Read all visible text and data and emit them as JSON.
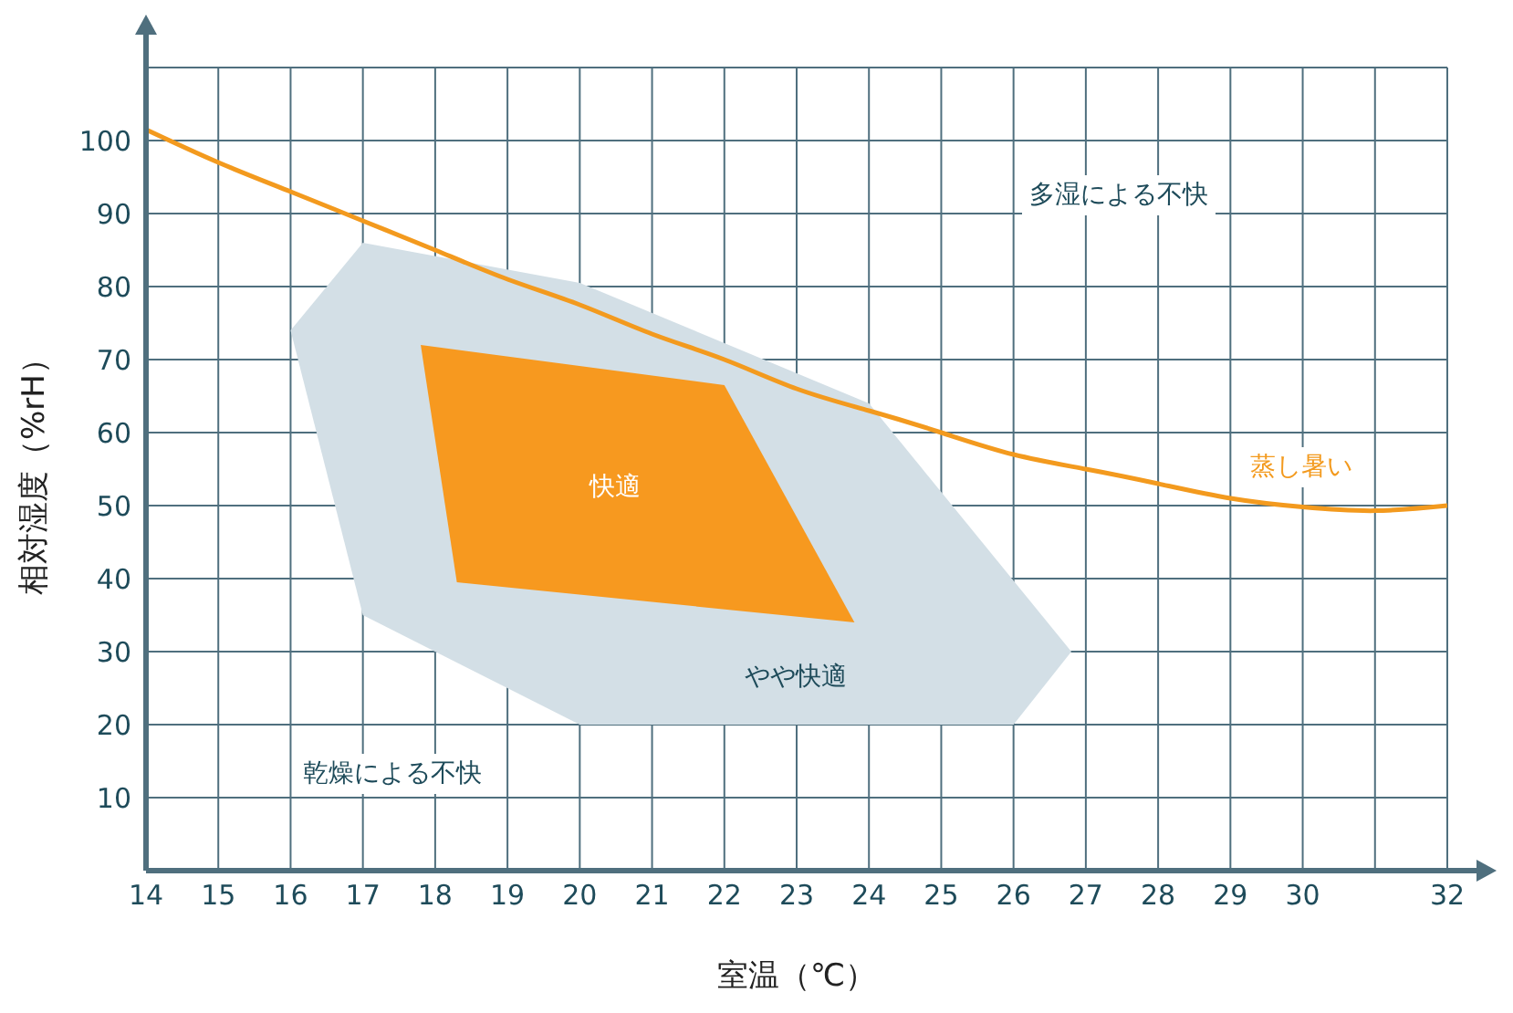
{
  "chart_data": {
    "type": "line",
    "xlabel": "室温（℃）",
    "ylabel": "相対湿度（%rH）",
    "xlim": [
      14,
      32
    ],
    "xticks": [
      14,
      15,
      16,
      17,
      18,
      19,
      20,
      21,
      22,
      23,
      24,
      25,
      26,
      27,
      28,
      29,
      30,
      {
        "value": 31,
        "label": null
      },
      32
    ],
    "ylim": [
      0,
      110
    ],
    "yticks": [
      10,
      20,
      30,
      40,
      50,
      60,
      70,
      80,
      90,
      100,
      {
        "value": 110,
        "label": null
      }
    ],
    "grid": true,
    "legend": false,
    "series": [
      {
        "type": "area",
        "color": "#d3dfe6",
        "x": [
          16,
          17,
          20,
          24,
          26.8,
          26,
          20,
          17
        ],
        "values": [
          74,
          86,
          80.5,
          64,
          30,
          20,
          20,
          35
        ]
      },
      {
        "type": "area",
        "color": "#f7991f",
        "x": [
          17.8,
          22,
          23.8,
          18.3
        ],
        "values": [
          72,
          66.5,
          34,
          39.5
        ]
      },
      {
        "color": "#f39a1e",
        "x": [
          14,
          15,
          16,
          17,
          18,
          19,
          20,
          21,
          22,
          23,
          24,
          25,
          26,
          27,
          28,
          29,
          30,
          31,
          32
        ],
        "values": [
          101.5,
          97,
          93,
          89,
          85,
          81,
          77.5,
          73.5,
          70,
          66,
          63,
          60,
          57,
          55,
          53,
          51,
          49.8,
          49.3,
          50
        ]
      }
    ],
    "annotations": [
      "多湿による不快",
      "蒸し暑い",
      "快適",
      "やや快適",
      "乾燥による不快"
    ]
  }
}
